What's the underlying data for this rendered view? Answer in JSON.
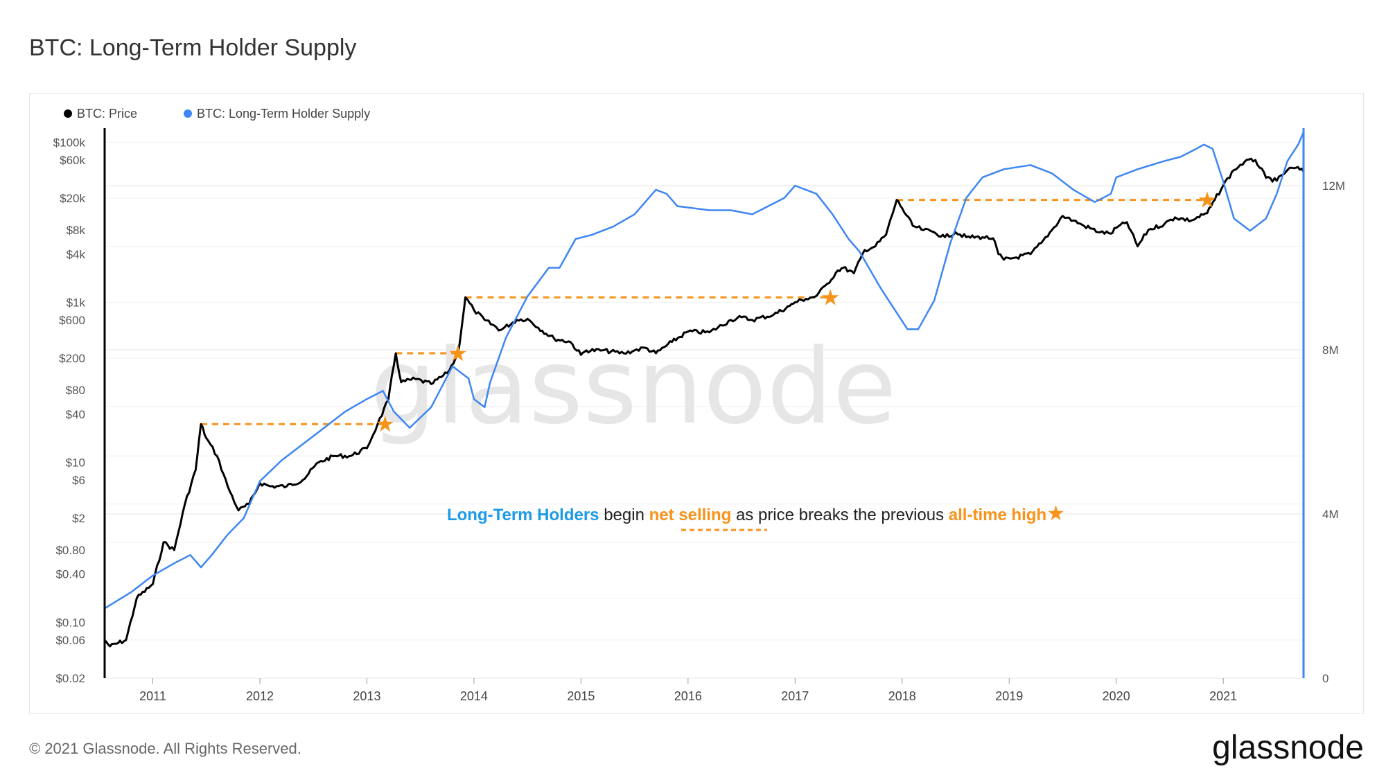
{
  "page": {
    "title": "BTC: Long-Term Holder Supply",
    "copyright": "© 2021 Glassnode. All Rights Reserved.",
    "logo_text": "glassnode",
    "watermark": "glassnode"
  },
  "colors": {
    "price": "#000000",
    "supply": "#3d86f3",
    "highlight": "#f7931a",
    "annotation_blue": "#1b9ae8"
  },
  "annotation": {
    "part1": "Long-Term Holders",
    "part2": " begin ",
    "part3": "net selling",
    "part4": " as price breaks the previous ",
    "part5": "all-time high",
    "star": "★"
  },
  "chart_data": {
    "type": "line",
    "title": "BTC: Long-Term Holder Supply",
    "legend_position": "top-left",
    "grid": true,
    "x_ticks": [
      "2011",
      "2012",
      "2013",
      "2014",
      "2015",
      "2016",
      "2017",
      "2018",
      "2019",
      "2020",
      "2021"
    ],
    "xlim": [
      2010.55,
      2021.75
    ],
    "y_left": {
      "scale": "log",
      "ticks": [
        {
          "v": 100000,
          "label": "$100k"
        },
        {
          "v": 60000,
          "label": "$60k"
        },
        {
          "v": 20000,
          "label": "$20k"
        },
        {
          "v": 8000,
          "label": "$8k"
        },
        {
          "v": 4000,
          "label": "$4k"
        },
        {
          "v": 1000,
          "label": "$1k"
        },
        {
          "v": 600,
          "label": "$600"
        },
        {
          "v": 200,
          "label": "$200"
        },
        {
          "v": 80,
          "label": "$80"
        },
        {
          "v": 40,
          "label": "$40"
        },
        {
          "v": 10,
          "label": "$10"
        },
        {
          "v": 6,
          "label": "$6"
        },
        {
          "v": 2,
          "label": "$2"
        },
        {
          "v": 0.8,
          "label": "$0.80"
        },
        {
          "v": 0.4,
          "label": "$0.40"
        },
        {
          "v": 0.1,
          "label": "$0.10"
        },
        {
          "v": 0.06,
          "label": "$0.06"
        },
        {
          "v": 0.02,
          "label": "$0.02"
        }
      ],
      "range": [
        0.02,
        150000
      ]
    },
    "y_right": {
      "scale": "linear",
      "ticks": [
        {
          "v": 0,
          "label": "0"
        },
        {
          "v": 4000000,
          "label": "4M"
        },
        {
          "v": 8000000,
          "label": "8M"
        },
        {
          "v": 12000000,
          "label": "12M"
        }
      ],
      "range": [
        0,
        13400000
      ]
    },
    "series": [
      {
        "name": "BTC: Price",
        "axis": "left",
        "points": [
          [
            2010.55,
            0.06
          ],
          [
            2010.6,
            0.05
          ],
          [
            2010.75,
            0.06
          ],
          [
            2010.85,
            0.2
          ],
          [
            2011.0,
            0.3
          ],
          [
            2011.1,
            1.0
          ],
          [
            2011.2,
            0.8
          ],
          [
            2011.3,
            3
          ],
          [
            2011.4,
            8
          ],
          [
            2011.45,
            30
          ],
          [
            2011.5,
            20
          ],
          [
            2011.6,
            12
          ],
          [
            2011.7,
            5
          ],
          [
            2011.8,
            2.5
          ],
          [
            2011.9,
            3
          ],
          [
            2012.0,
            5.5
          ],
          [
            2012.1,
            5
          ],
          [
            2012.25,
            5
          ],
          [
            2012.4,
            6
          ],
          [
            2012.55,
            10
          ],
          [
            2012.7,
            12
          ],
          [
            2012.85,
            12
          ],
          [
            2013.0,
            15
          ],
          [
            2013.1,
            30
          ],
          [
            2013.2,
            60
          ],
          [
            2013.27,
            230
          ],
          [
            2013.32,
            100
          ],
          [
            2013.45,
            110
          ],
          [
            2013.6,
            95
          ],
          [
            2013.75,
            130
          ],
          [
            2013.85,
            220
          ],
          [
            2013.9,
            700
          ],
          [
            2013.92,
            1150
          ],
          [
            2014.0,
            800
          ],
          [
            2014.1,
            600
          ],
          [
            2014.25,
            450
          ],
          [
            2014.4,
            600
          ],
          [
            2014.5,
            620
          ],
          [
            2014.6,
            480
          ],
          [
            2014.75,
            350
          ],
          [
            2014.9,
            320
          ],
          [
            2015.0,
            220
          ],
          [
            2015.05,
            250
          ],
          [
            2015.2,
            250
          ],
          [
            2015.4,
            230
          ],
          [
            2015.5,
            250
          ],
          [
            2015.6,
            270
          ],
          [
            2015.7,
            230
          ],
          [
            2015.85,
            320
          ],
          [
            2016.0,
            430
          ],
          [
            2016.2,
            420
          ],
          [
            2016.4,
            600
          ],
          [
            2016.5,
            650
          ],
          [
            2016.6,
            600
          ],
          [
            2016.8,
            700
          ],
          [
            2016.95,
            900
          ],
          [
            2017.0,
            1000
          ],
          [
            2017.1,
            1100
          ],
          [
            2017.2,
            1200
          ],
          [
            2017.3,
            1700
          ],
          [
            2017.4,
            2500
          ],
          [
            2017.45,
            2700
          ],
          [
            2017.55,
            2300
          ],
          [
            2017.65,
            4500
          ],
          [
            2017.75,
            5000
          ],
          [
            2017.85,
            7000
          ],
          [
            2017.95,
            19000
          ],
          [
            2018.0,
            15000
          ],
          [
            2018.1,
            9000
          ],
          [
            2018.2,
            8000
          ],
          [
            2018.3,
            7500
          ],
          [
            2018.4,
            6500
          ],
          [
            2018.5,
            7500
          ],
          [
            2018.6,
            6500
          ],
          [
            2018.75,
            6500
          ],
          [
            2018.85,
            6300
          ],
          [
            2018.9,
            4000
          ],
          [
            2018.95,
            3400
          ],
          [
            2019.05,
            3600
          ],
          [
            2019.2,
            4000
          ],
          [
            2019.3,
            5500
          ],
          [
            2019.4,
            8000
          ],
          [
            2019.5,
            12000
          ],
          [
            2019.6,
            10500
          ],
          [
            2019.7,
            9000
          ],
          [
            2019.85,
            7500
          ],
          [
            2019.95,
            7200
          ],
          [
            2020.0,
            8500
          ],
          [
            2020.1,
            10000
          ],
          [
            2020.2,
            5000
          ],
          [
            2020.3,
            8000
          ],
          [
            2020.45,
            9500
          ],
          [
            2020.55,
            11500
          ],
          [
            2020.7,
            10500
          ],
          [
            2020.85,
            13000
          ],
          [
            2020.92,
            19000
          ],
          [
            2021.0,
            29000
          ],
          [
            2021.1,
            45000
          ],
          [
            2021.2,
            57000
          ],
          [
            2021.3,
            60000
          ],
          [
            2021.4,
            36000
          ],
          [
            2021.5,
            33000
          ],
          [
            2021.6,
            45000
          ],
          [
            2021.68,
            48000
          ],
          [
            2021.75,
            43000
          ]
        ]
      },
      {
        "name": "BTC: Long-Term Holder Supply",
        "axis": "right",
        "points": [
          [
            2010.55,
            1700000
          ],
          [
            2010.8,
            2100000
          ],
          [
            2011.0,
            2500000
          ],
          [
            2011.2,
            2800000
          ],
          [
            2011.35,
            3000000
          ],
          [
            2011.45,
            2700000
          ],
          [
            2011.55,
            3000000
          ],
          [
            2011.7,
            3500000
          ],
          [
            2011.85,
            3900000
          ],
          [
            2012.0,
            4800000
          ],
          [
            2012.2,
            5300000
          ],
          [
            2012.4,
            5700000
          ],
          [
            2012.6,
            6100000
          ],
          [
            2012.8,
            6500000
          ],
          [
            2013.0,
            6800000
          ],
          [
            2013.15,
            7000000
          ],
          [
            2013.25,
            6500000
          ],
          [
            2013.4,
            6100000
          ],
          [
            2013.6,
            6600000
          ],
          [
            2013.8,
            7600000
          ],
          [
            2013.95,
            7300000
          ],
          [
            2014.0,
            6800000
          ],
          [
            2014.1,
            6600000
          ],
          [
            2014.15,
            7200000
          ],
          [
            2014.3,
            8300000
          ],
          [
            2014.5,
            9300000
          ],
          [
            2014.7,
            10000000
          ],
          [
            2014.8,
            10000000
          ],
          [
            2014.95,
            10700000
          ],
          [
            2015.1,
            10800000
          ],
          [
            2015.3,
            11000000
          ],
          [
            2015.5,
            11300000
          ],
          [
            2015.7,
            11900000
          ],
          [
            2015.8,
            11800000
          ],
          [
            2015.9,
            11500000
          ],
          [
            2016.2,
            11400000
          ],
          [
            2016.4,
            11400000
          ],
          [
            2016.6,
            11300000
          ],
          [
            2016.9,
            11700000
          ],
          [
            2017.0,
            12000000
          ],
          [
            2017.2,
            11800000
          ],
          [
            2017.35,
            11300000
          ],
          [
            2017.5,
            10700000
          ],
          [
            2017.6,
            10400000
          ],
          [
            2017.8,
            9500000
          ],
          [
            2017.95,
            8900000
          ],
          [
            2018.05,
            8500000
          ],
          [
            2018.15,
            8500000
          ],
          [
            2018.3,
            9200000
          ],
          [
            2018.45,
            10600000
          ],
          [
            2018.6,
            11700000
          ],
          [
            2018.75,
            12200000
          ],
          [
            2018.95,
            12400000
          ],
          [
            2019.2,
            12500000
          ],
          [
            2019.4,
            12300000
          ],
          [
            2019.6,
            11900000
          ],
          [
            2019.8,
            11600000
          ],
          [
            2019.95,
            11800000
          ],
          [
            2020.0,
            12200000
          ],
          [
            2020.2,
            12400000
          ],
          [
            2020.45,
            12600000
          ],
          [
            2020.6,
            12700000
          ],
          [
            2020.75,
            12900000
          ],
          [
            2020.82,
            13000000
          ],
          [
            2020.9,
            12900000
          ],
          [
            2020.95,
            12500000
          ],
          [
            2021.0,
            12100000
          ],
          [
            2021.1,
            11200000
          ],
          [
            2021.25,
            10900000
          ],
          [
            2021.4,
            11200000
          ],
          [
            2021.5,
            11800000
          ],
          [
            2021.6,
            12600000
          ],
          [
            2021.7,
            13000000
          ],
          [
            2021.75,
            13300000
          ]
        ]
      }
    ],
    "ath_breaks": [
      {
        "from_x": 2011.45,
        "to_x": 2013.17,
        "price": 30
      },
      {
        "from_x": 2013.27,
        "to_x": 2013.85,
        "price": 230
      },
      {
        "from_x": 2013.92,
        "to_x": 2017.33,
        "price": 1150
      },
      {
        "from_x": 2017.95,
        "to_x": 2020.85,
        "price": 19000
      }
    ]
  }
}
